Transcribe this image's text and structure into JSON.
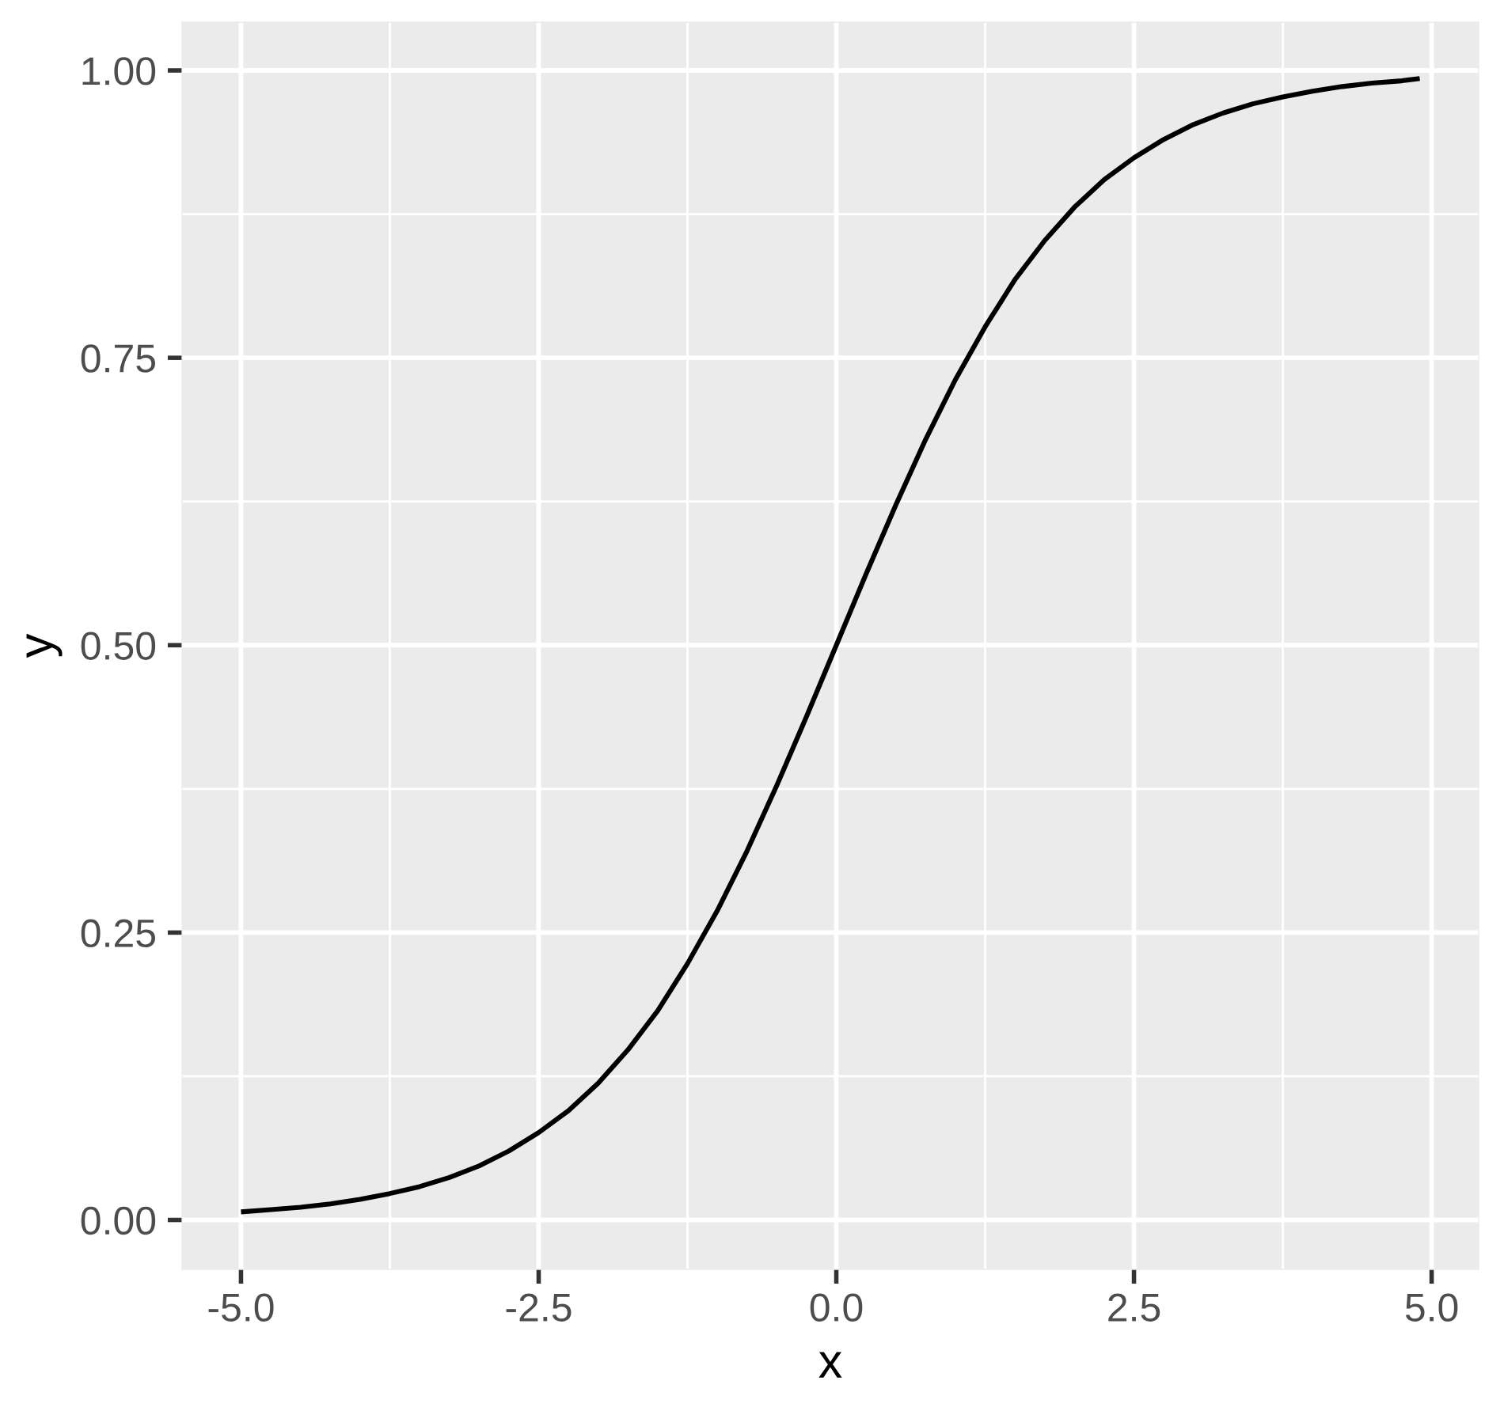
{
  "chart_data": {
    "type": "line",
    "xlabel": "x",
    "ylabel": "y",
    "x": [
      -5,
      -4.75,
      -4.5,
      -4.25,
      -4,
      -3.75,
      -3.5,
      -3.25,
      -3,
      -2.75,
      -2.5,
      -2.25,
      -2,
      -1.75,
      -1.5,
      -1.25,
      -1,
      -0.75,
      -0.5,
      -0.25,
      0,
      0.25,
      0.5,
      0.75,
      1,
      1.25,
      1.5,
      1.75,
      2,
      2.25,
      2.5,
      2.75,
      3,
      3.25,
      3.5,
      3.75,
      4,
      4.25,
      4.5,
      4.75,
      4.9
    ],
    "series": [
      {
        "color": "#000000",
        "values": [
          0.007,
          0.009,
          0.011,
          0.014,
          0.018,
          0.023,
          0.029,
          0.037,
          0.047,
          0.06,
          0.076,
          0.095,
          0.119,
          0.148,
          0.182,
          0.223,
          0.269,
          0.321,
          0.378,
          0.438,
          0.5,
          0.562,
          0.622,
          0.679,
          0.731,
          0.777,
          0.818,
          0.852,
          0.881,
          0.905,
          0.924,
          0.94,
          0.953,
          0.963,
          0.971,
          0.977,
          0.982,
          0.986,
          0.989,
          0.991,
          0.993
        ]
      }
    ],
    "xlim": [
      -5.495,
      5.395
    ],
    "ylim": [
      -0.043,
      1.042
    ],
    "xticks": [
      {
        "value": -5,
        "label": "-5.0"
      },
      {
        "value": -2.5,
        "label": "-2.5"
      },
      {
        "value": 0,
        "label": "0.0"
      },
      {
        "value": 2.5,
        "label": "2.5"
      },
      {
        "value": 5,
        "label": "5.0"
      }
    ],
    "yticks": [
      {
        "value": 0,
        "label": "0.00"
      },
      {
        "value": 0.25,
        "label": "0.25"
      },
      {
        "value": 0.5,
        "label": "0.50"
      },
      {
        "value": 0.75,
        "label": "0.75"
      },
      {
        "value": 1,
        "label": "1.00"
      }
    ],
    "grid": true
  }
}
